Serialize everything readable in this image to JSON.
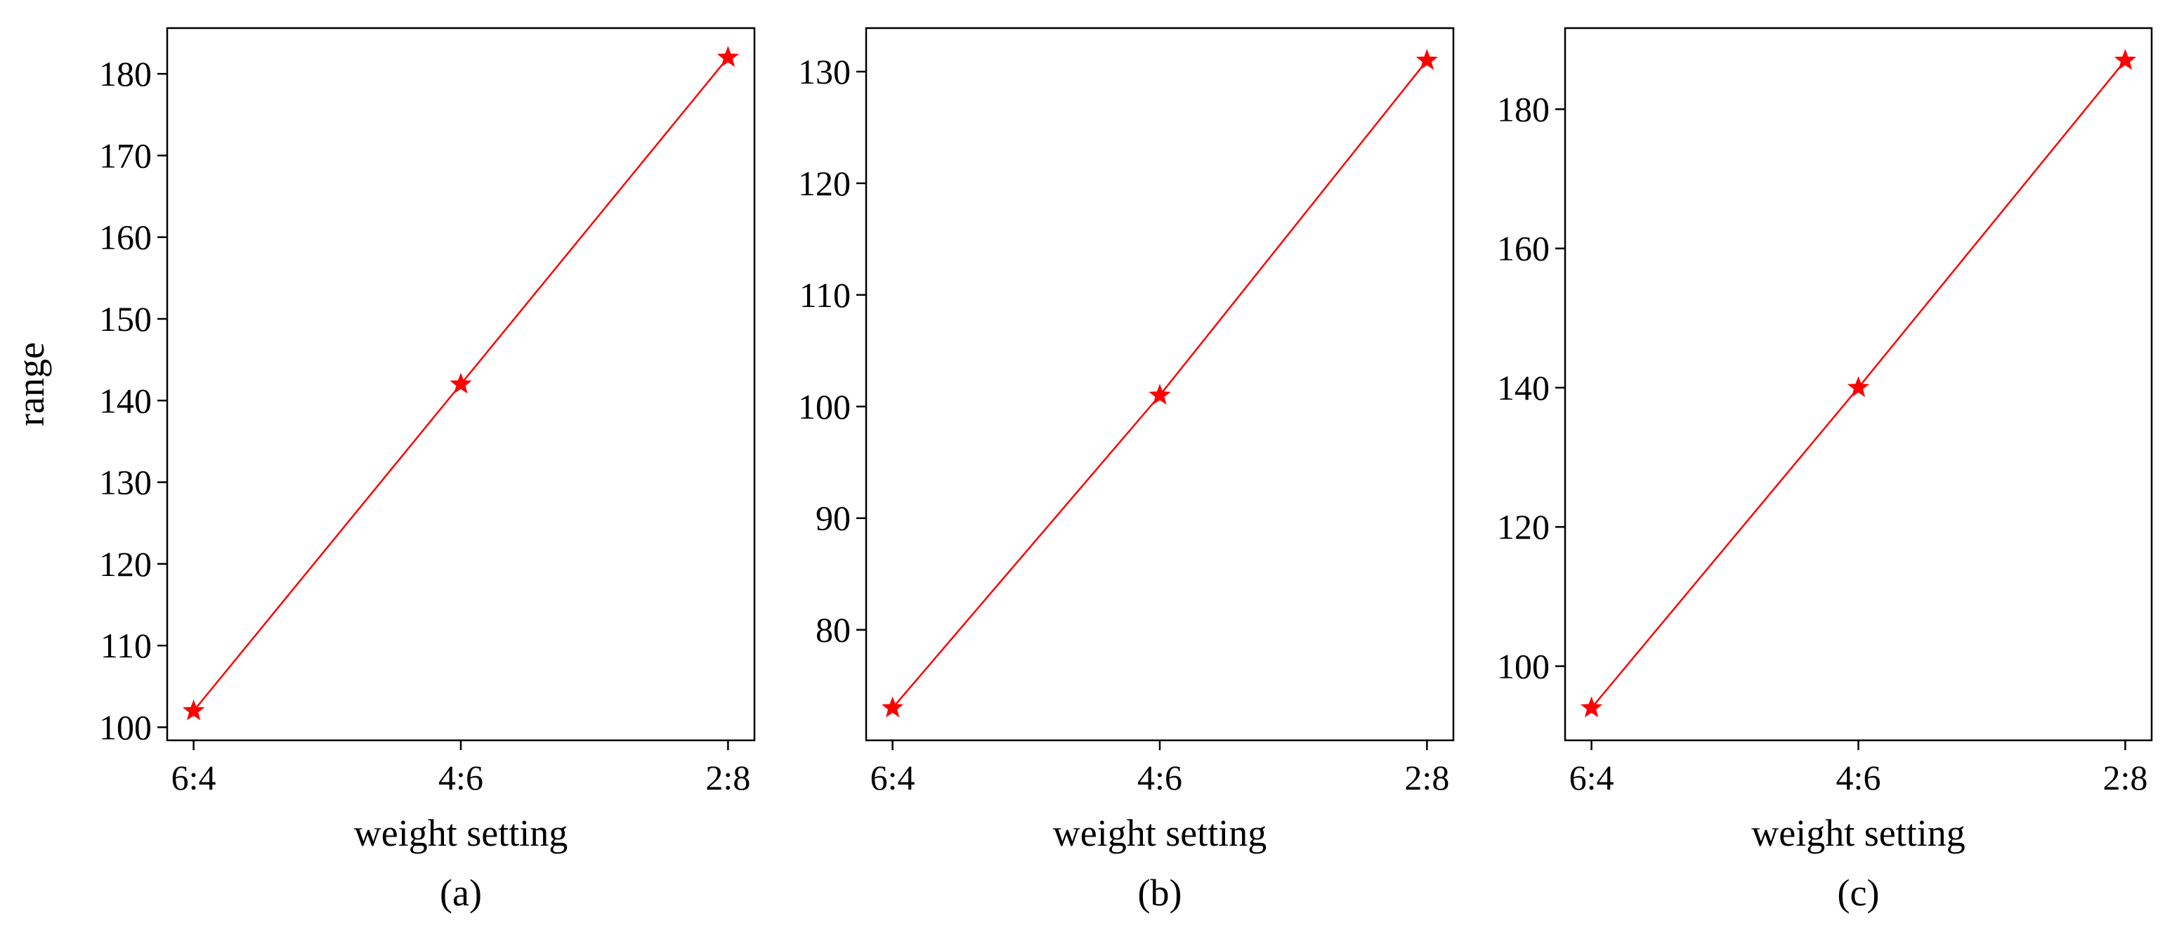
{
  "chart_data": [
    {
      "type": "line",
      "caption": "(a)",
      "xlabel": "weight setting",
      "ylabel": "range",
      "categories": [
        "6:4",
        "4:6",
        "2:8"
      ],
      "values": [
        102,
        142,
        182
      ],
      "ylim": [
        98.4,
        185.6
      ],
      "yticks": [
        100,
        110,
        120,
        130,
        140,
        150,
        160,
        170,
        180
      ],
      "marker": "star",
      "color": "#ff0000",
      "grid": false
    },
    {
      "type": "line",
      "caption": "(b)",
      "xlabel": "weight setting",
      "ylabel": "",
      "categories": [
        "6:4",
        "4:6",
        "2:8"
      ],
      "values": [
        73,
        101,
        131
      ],
      "ylim": [
        70.1,
        133.9
      ],
      "yticks": [
        80,
        90,
        100,
        110,
        120,
        130
      ],
      "marker": "star",
      "color": "#ff0000",
      "grid": false
    },
    {
      "type": "line",
      "caption": "(c)",
      "xlabel": "weight setting",
      "ylabel": "",
      "categories": [
        "6:4",
        "4:6",
        "2:8"
      ],
      "values": [
        94,
        140,
        187
      ],
      "ylim": [
        89.35,
        191.65
      ],
      "yticks": [
        100,
        120,
        140,
        160,
        180
      ],
      "marker": "star",
      "color": "#ff0000",
      "grid": false
    }
  ]
}
